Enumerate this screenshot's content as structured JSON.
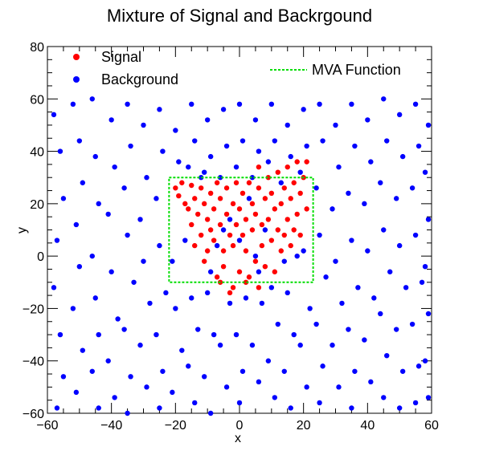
{
  "chart_data": {
    "type": "scatter",
    "title": "Mixture of Signal and Backrgound",
    "xlabel": "x",
    "ylabel": "y",
    "xlim": [
      -60,
      60
    ],
    "ylim": [
      -60,
      80
    ],
    "x_major_ticks": [
      -60,
      -40,
      -20,
      0,
      20,
      40,
      60
    ],
    "y_major_ticks": [
      -60,
      -40,
      -20,
      0,
      20,
      40,
      60,
      80
    ],
    "grid": false,
    "legend_position": "top",
    "series": [
      {
        "name": "Signal",
        "color": "#ff0000",
        "marker": "circle",
        "points": [
          [
            -20,
            26
          ],
          [
            -19,
            23
          ],
          [
            -18,
            28
          ],
          [
            -17,
            20
          ],
          [
            -16,
            18
          ],
          [
            -15,
            27
          ],
          [
            -15,
            12
          ],
          [
            -14,
            22
          ],
          [
            -13,
            16
          ],
          [
            -12,
            26
          ],
          [
            -12,
            8
          ],
          [
            -11,
            20
          ],
          [
            -10,
            14
          ],
          [
            -10,
            2
          ],
          [
            -9,
            24
          ],
          [
            -9,
            10
          ],
          [
            -8,
            18
          ],
          [
            -8,
            6
          ],
          [
            -7,
            28
          ],
          [
            -7,
            -8
          ],
          [
            -6,
            22
          ],
          [
            -6,
            12
          ],
          [
            -5,
            -4
          ],
          [
            -5,
            2
          ],
          [
            -4,
            26
          ],
          [
            -4,
            16
          ],
          [
            -3,
            8
          ],
          [
            -3,
            -14
          ],
          [
            -2,
            20
          ],
          [
            -2,
            4
          ],
          [
            -1,
            28
          ],
          [
            -1,
            12
          ],
          [
            0,
            -6
          ],
          [
            0,
            18
          ],
          [
            1,
            24
          ],
          [
            1,
            8
          ],
          [
            2,
            2
          ],
          [
            2,
            14
          ],
          [
            3,
            28
          ],
          [
            3,
            -8
          ],
          [
            4,
            20
          ],
          [
            4,
            10
          ],
          [
            5,
            -2
          ],
          [
            5,
            16
          ],
          [
            6,
            34
          ],
          [
            6,
            26
          ],
          [
            7,
            12
          ],
          [
            7,
            4
          ],
          [
            8,
            22
          ],
          [
            8,
            -4
          ],
          [
            9,
            30
          ],
          [
            9,
            14
          ],
          [
            10,
            6
          ],
          [
            10,
            24
          ],
          [
            11,
            18
          ],
          [
            11,
            -6
          ],
          [
            12,
            10
          ],
          [
            12,
            32
          ],
          [
            13,
            20
          ],
          [
            13,
            2
          ],
          [
            14,
            26
          ],
          [
            14,
            8
          ],
          [
            15,
            14
          ],
          [
            15,
            34
          ],
          [
            16,
            4
          ],
          [
            16,
            22
          ],
          [
            17,
            28
          ],
          [
            17,
            10
          ],
          [
            18,
            36
          ],
          [
            18,
            16
          ],
          [
            19,
            24
          ],
          [
            19,
            8
          ],
          [
            20,
            30
          ],
          [
            21,
            18
          ],
          [
            21,
            36
          ],
          [
            -14,
            4
          ],
          [
            -11,
            -2
          ],
          [
            -6,
            -10
          ],
          [
            -2,
            -12
          ],
          [
            2,
            -10
          ],
          [
            6,
            -12
          ]
        ]
      },
      {
        "name": "Background",
        "color": "#0000ff",
        "marker": "circle",
        "points": [
          [
            -58,
            54
          ],
          [
            -56,
            40
          ],
          [
            -55,
            22
          ],
          [
            -57,
            6
          ],
          [
            -58,
            -12
          ],
          [
            -56,
            -30
          ],
          [
            -55,
            -46
          ],
          [
            -57,
            -58
          ],
          [
            -52,
            58
          ],
          [
            -50,
            44
          ],
          [
            -49,
            28
          ],
          [
            -51,
            12
          ],
          [
            -50,
            -4
          ],
          [
            -52,
            -20
          ],
          [
            -49,
            -36
          ],
          [
            -51,
            -52
          ],
          [
            -46,
            60
          ],
          [
            -45,
            38
          ],
          [
            -44,
            20
          ],
          [
            -46,
            0
          ],
          [
            -45,
            -16
          ],
          [
            -44,
            -30
          ],
          [
            -46,
            -44
          ],
          [
            -44,
            -58
          ],
          [
            -40,
            52
          ],
          [
            -39,
            34
          ],
          [
            -41,
            16
          ],
          [
            -40,
            -6
          ],
          [
            -38,
            -24
          ],
          [
            -41,
            -40
          ],
          [
            -39,
            -54
          ],
          [
            -35,
            58
          ],
          [
            -34,
            42
          ],
          [
            -36,
            26
          ],
          [
            -35,
            8
          ],
          [
            -33,
            -10
          ],
          [
            -36,
            -28
          ],
          [
            -34,
            -46
          ],
          [
            -35,
            -60
          ],
          [
            -30,
            50
          ],
          [
            -29,
            30
          ],
          [
            -31,
            14
          ],
          [
            -30,
            -2
          ],
          [
            -28,
            -18
          ],
          [
            -31,
            -34
          ],
          [
            -29,
            -50
          ],
          [
            -25,
            56
          ],
          [
            -24,
            40
          ],
          [
            -26,
            22
          ],
          [
            -25,
            4
          ],
          [
            -23,
            -14
          ],
          [
            -26,
            -30
          ],
          [
            -24,
            -44
          ],
          [
            -25,
            -58
          ],
          [
            -20,
            48
          ],
          [
            -19,
            36
          ],
          [
            -21,
            -2
          ],
          [
            -20,
            -20
          ],
          [
            -18,
            -36
          ],
          [
            -21,
            -52
          ],
          [
            -15,
            58
          ],
          [
            -14,
            44
          ],
          [
            -16,
            34
          ],
          [
            -15,
            -16
          ],
          [
            -13,
            -28
          ],
          [
            -16,
            -42
          ],
          [
            -14,
            -56
          ],
          [
            -10,
            52
          ],
          [
            -9,
            38
          ],
          [
            -11,
            32
          ],
          [
            -10,
            -14
          ],
          [
            -8,
            -30
          ],
          [
            -11,
            -46
          ],
          [
            -9,
            -60
          ],
          [
            -5,
            56
          ],
          [
            -4,
            42
          ],
          [
            -6,
            30
          ],
          [
            -5,
            10
          ],
          [
            -3,
            -18
          ],
          [
            -6,
            -34
          ],
          [
            -4,
            -50
          ],
          [
            0,
            58
          ],
          [
            1,
            44
          ],
          [
            -1,
            34
          ],
          [
            0,
            6
          ],
          [
            2,
            -16
          ],
          [
            -1,
            -30
          ],
          [
            1,
            -44
          ],
          [
            0,
            -56
          ],
          [
            5,
            52
          ],
          [
            6,
            40
          ],
          [
            4,
            30
          ],
          [
            5,
            0
          ],
          [
            7,
            -18
          ],
          [
            4,
            -34
          ],
          [
            6,
            -48
          ],
          [
            10,
            58
          ],
          [
            11,
            44
          ],
          [
            9,
            36
          ],
          [
            10,
            -12
          ],
          [
            12,
            -26
          ],
          [
            9,
            -40
          ],
          [
            11,
            -54
          ],
          [
            15,
            50
          ],
          [
            16,
            38
          ],
          [
            14,
            -2
          ],
          [
            15,
            -14
          ],
          [
            17,
            -30
          ],
          [
            14,
            -44
          ],
          [
            16,
            -58
          ],
          [
            20,
            56
          ],
          [
            21,
            42
          ],
          [
            19,
            32
          ],
          [
            20,
            2
          ],
          [
            22,
            -20
          ],
          [
            19,
            -34
          ],
          [
            21,
            -50
          ],
          [
            25,
            58
          ],
          [
            26,
            44
          ],
          [
            24,
            26
          ],
          [
            25,
            8
          ],
          [
            27,
            -8
          ],
          [
            24,
            -26
          ],
          [
            26,
            -42
          ],
          [
            25,
            -56
          ],
          [
            30,
            50
          ],
          [
            31,
            34
          ],
          [
            29,
            18
          ],
          [
            30,
            -2
          ],
          [
            32,
            -18
          ],
          [
            29,
            -34
          ],
          [
            31,
            -50
          ],
          [
            35,
            58
          ],
          [
            36,
            42
          ],
          [
            34,
            24
          ],
          [
            35,
            6
          ],
          [
            37,
            -12
          ],
          [
            34,
            -28
          ],
          [
            36,
            -44
          ],
          [
            35,
            -58
          ],
          [
            40,
            52
          ],
          [
            41,
            36
          ],
          [
            39,
            20
          ],
          [
            40,
            2
          ],
          [
            42,
            -16
          ],
          [
            39,
            -32
          ],
          [
            41,
            -48
          ],
          [
            45,
            60
          ],
          [
            46,
            44
          ],
          [
            44,
            28
          ],
          [
            45,
            10
          ],
          [
            47,
            -6
          ],
          [
            44,
            -22
          ],
          [
            46,
            -38
          ],
          [
            45,
            -54
          ],
          [
            50,
            54
          ],
          [
            51,
            38
          ],
          [
            49,
            22
          ],
          [
            50,
            4
          ],
          [
            52,
            -12
          ],
          [
            49,
            -28
          ],
          [
            51,
            -44
          ],
          [
            50,
            -58
          ],
          [
            55,
            58
          ],
          [
            56,
            42
          ],
          [
            54,
            26
          ],
          [
            55,
            8
          ],
          [
            57,
            -10
          ],
          [
            54,
            -26
          ],
          [
            56,
            -42
          ],
          [
            55,
            -56
          ],
          [
            59,
            50
          ],
          [
            58,
            32
          ],
          [
            59,
            14
          ],
          [
            58,
            -4
          ],
          [
            59,
            -22
          ],
          [
            58,
            -40
          ],
          [
            59,
            -54
          ],
          [
            -17,
            6
          ],
          [
            -12,
            30
          ],
          [
            -7,
            4
          ],
          [
            -3,
            14
          ],
          [
            3,
            22
          ],
          [
            8,
            10
          ],
          [
            13,
            28
          ],
          [
            18,
            0
          ],
          [
            -9,
            -6
          ],
          [
            6,
            -6
          ]
        ]
      }
    ],
    "mva_function": {
      "name": "MVA Function",
      "color": "#00dd00",
      "style": "dashed",
      "box": {
        "x": [
          -22,
          23
        ],
        "y": [
          -10,
          30
        ]
      }
    }
  }
}
